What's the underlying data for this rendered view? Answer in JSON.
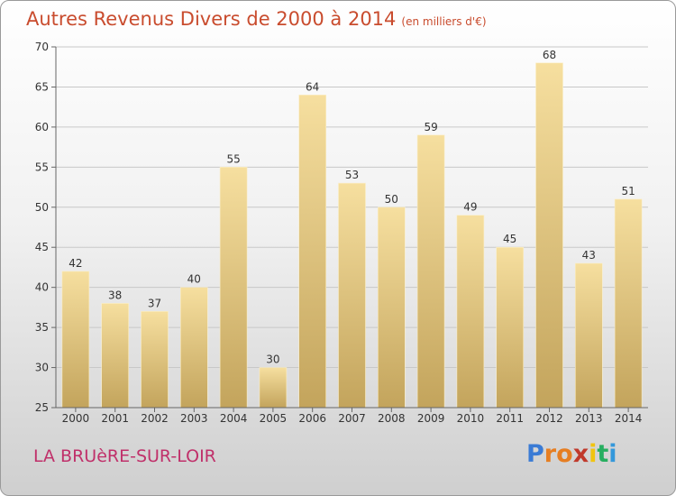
{
  "header": {
    "title": "Autres Revenus Divers de 2000 à 2014",
    "unit": "(en milliers d'€)"
  },
  "footer": {
    "town": "LA BRUèRE-SUR-LOIR",
    "logo": "Proxiti"
  },
  "colors": {
    "bar_light": "#f5dc9b",
    "bar_dark": "#c6a760",
    "grid": "#c8c8c8",
    "title": "#c94c2e",
    "town": "#c0306a"
  },
  "chart_data": {
    "type": "bar",
    "categories": [
      "2000",
      "2001",
      "2002",
      "2003",
      "2004",
      "2005",
      "2006",
      "2007",
      "2008",
      "2009",
      "2010",
      "2011",
      "2012",
      "2013",
      "2014"
    ],
    "values": [
      42,
      38,
      37,
      40,
      55,
      30,
      64,
      53,
      50,
      59,
      49,
      45,
      68,
      43,
      51
    ],
    "ylim": [
      25,
      70
    ],
    "yticks": [
      25,
      30,
      35,
      40,
      45,
      50,
      55,
      60,
      65,
      70
    ],
    "grid": true,
    "legend": "none"
  }
}
